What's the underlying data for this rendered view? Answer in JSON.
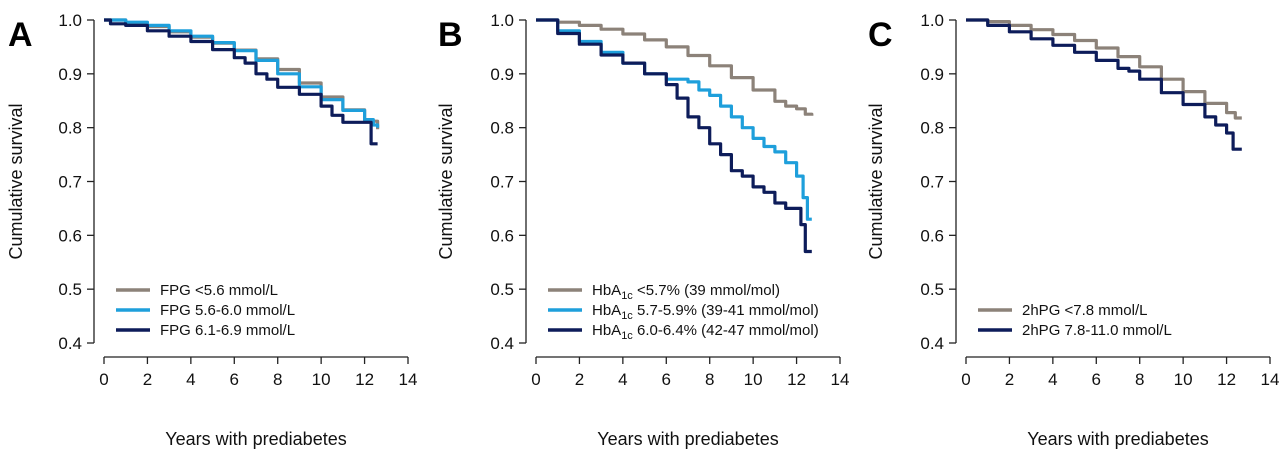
{
  "chart_data": [
    {
      "type": "line",
      "panel": "A",
      "xlabel": "Years with prediabetes",
      "ylabel": "Cumulative survival",
      "xlim": [
        0,
        14
      ],
      "ylim": [
        0.4,
        1.0
      ],
      "xticks": [
        "0",
        "2",
        "4",
        "6",
        "8",
        "10",
        "12",
        "14"
      ],
      "yticks": [
        "0.4",
        "0.5",
        "0.6",
        "0.7",
        "0.8",
        "0.9",
        "1.0"
      ],
      "legend_position": "bottom-left",
      "series": [
        {
          "name": "FPG <5.6 mmol/L",
          "color": "#8c8279",
          "x": [
            0,
            1,
            2,
            3,
            4,
            5,
            6,
            7,
            8,
            9,
            10,
            11,
            12,
            12.6
          ],
          "y": [
            1.0,
            0.995,
            0.988,
            0.978,
            0.968,
            0.957,
            0.944,
            0.928,
            0.908,
            0.883,
            0.857,
            0.833,
            0.812,
            0.797
          ]
        },
        {
          "name": "FPG 5.6-6.0 mmol/L",
          "color": "#1e9fdb",
          "x": [
            0,
            1,
            2,
            3,
            4,
            5,
            6,
            7,
            8,
            9,
            10,
            11,
            12,
            12.4,
            12.6
          ],
          "y": [
            1.0,
            0.996,
            0.99,
            0.98,
            0.97,
            0.958,
            0.943,
            0.925,
            0.9,
            0.876,
            0.852,
            0.832,
            0.815,
            0.805,
            0.8
          ]
        },
        {
          "name": "FPG 6.1-6.9 mmol/L",
          "color": "#0d1c5a",
          "x": [
            0,
            0.3,
            1,
            2,
            3,
            4,
            5,
            6,
            6.5,
            7,
            7.5,
            8,
            9,
            10,
            10.5,
            11,
            11.5,
            12,
            12.3,
            12.6
          ],
          "y": [
            1.0,
            0.993,
            0.99,
            0.98,
            0.97,
            0.96,
            0.945,
            0.93,
            0.92,
            0.9,
            0.89,
            0.875,
            0.862,
            0.84,
            0.823,
            0.81,
            0.81,
            0.81,
            0.77,
            0.77
          ]
        }
      ]
    },
    {
      "type": "line",
      "panel": "B",
      "xlabel": "Years with prediabetes",
      "ylabel": "Cumulative survival",
      "xlim": [
        0,
        14
      ],
      "ylim": [
        0.4,
        1.0
      ],
      "xticks": [
        "0",
        "2",
        "4",
        "6",
        "8",
        "10",
        "12",
        "14"
      ],
      "yticks": [
        "0.4",
        "0.5",
        "0.6",
        "0.7",
        "0.8",
        "0.9",
        "1.0"
      ],
      "legend_position": "bottom-left",
      "series": [
        {
          "name": "HbA1c <5.7% (39 mmol/mol)",
          "color": "#8c8279",
          "x": [
            0,
            1,
            2,
            3,
            4,
            5,
            6,
            7,
            8,
            9,
            10,
            11,
            11.5,
            12,
            12.4,
            12.7
          ],
          "y": [
            1.0,
            0.996,
            0.99,
            0.983,
            0.974,
            0.963,
            0.95,
            0.934,
            0.915,
            0.893,
            0.87,
            0.849,
            0.84,
            0.835,
            0.825,
            0.822
          ]
        },
        {
          "name": "HbA1c 5.7-5.9% (39-41 mmol/mol)",
          "color": "#1e9fdb",
          "x": [
            0,
            1,
            2,
            3,
            4,
            5,
            6,
            7,
            7.5,
            8,
            8.5,
            9,
            9.5,
            10,
            10.5,
            11,
            11.5,
            12,
            12.3,
            12.5,
            12.7
          ],
          "y": [
            1.0,
            0.98,
            0.96,
            0.94,
            0.92,
            0.9,
            0.89,
            0.885,
            0.87,
            0.86,
            0.84,
            0.82,
            0.8,
            0.78,
            0.765,
            0.755,
            0.735,
            0.71,
            0.67,
            0.63,
            0.63
          ]
        },
        {
          "name": "HbA1c 6.0-6.4% (42-47 mmol/mol)",
          "color": "#0d1c5a",
          "x": [
            0,
            1,
            2,
            3,
            4,
            5,
            6,
            6.5,
            7,
            7.5,
            8,
            8.5,
            9,
            9.5,
            10,
            10.5,
            11,
            11.5,
            12,
            12.2,
            12.4,
            12.7
          ],
          "y": [
            1.0,
            0.975,
            0.955,
            0.935,
            0.92,
            0.9,
            0.88,
            0.855,
            0.82,
            0.8,
            0.77,
            0.75,
            0.72,
            0.71,
            0.69,
            0.68,
            0.66,
            0.65,
            0.65,
            0.62,
            0.57,
            0.57
          ]
        }
      ]
    },
    {
      "type": "line",
      "panel": "C",
      "xlabel": "Years with prediabetes",
      "ylabel": "Cumulative survival",
      "xlim": [
        0,
        14
      ],
      "ylim": [
        0.4,
        1.0
      ],
      "xticks": [
        "0",
        "2",
        "4",
        "6",
        "8",
        "10",
        "12",
        "14"
      ],
      "yticks": [
        "0.4",
        "0.5",
        "0.6",
        "0.7",
        "0.8",
        "0.9",
        "1.0"
      ],
      "legend_position": "bottom-left",
      "series": [
        {
          "name": "2hPG <7.8 mmol/L",
          "color": "#8c8279",
          "x": [
            0,
            1,
            2,
            3,
            4,
            5,
            6,
            7,
            8,
            9,
            10,
            11,
            12,
            12.4,
            12.7
          ],
          "y": [
            1.0,
            0.997,
            0.99,
            0.982,
            0.973,
            0.962,
            0.948,
            0.932,
            0.913,
            0.89,
            0.867,
            0.845,
            0.828,
            0.818,
            0.818
          ]
        },
        {
          "name": "2hPG 7.8-11.0 mmol/L",
          "color": "#0d1c5a",
          "x": [
            0,
            1,
            2,
            3,
            4,
            5,
            6,
            7,
            7.5,
            8,
            9,
            10,
            11,
            11.5,
            12,
            12.3,
            12.7
          ],
          "y": [
            1.0,
            0.99,
            0.978,
            0.965,
            0.953,
            0.94,
            0.925,
            0.91,
            0.905,
            0.89,
            0.865,
            0.843,
            0.82,
            0.805,
            0.79,
            0.76,
            0.76
          ]
        }
      ]
    }
  ]
}
